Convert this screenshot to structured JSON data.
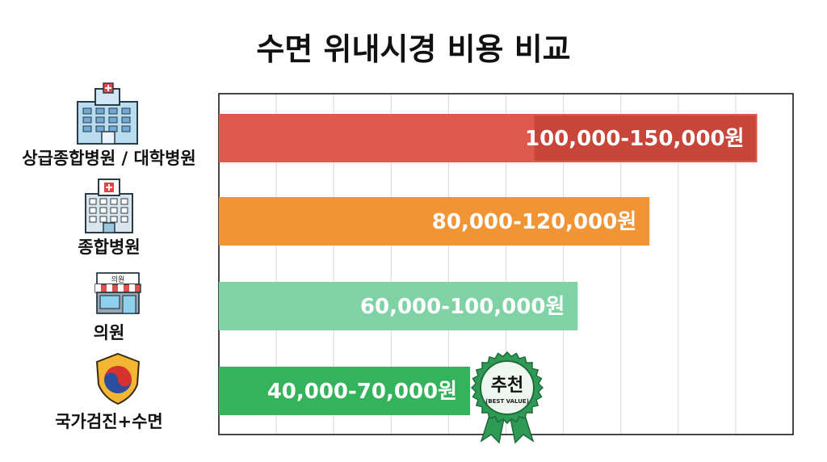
{
  "chart_data": {
    "type": "bar",
    "orientation": "horizontal",
    "title": "수면 위내시경 비용 비교",
    "categories": [
      "상급종합병원 / 대학병원",
      "종합병원",
      "의원",
      "국가검진+수면"
    ],
    "icons": [
      "hospital-building-icon",
      "hospital-icon",
      "clinic-storefront-icon",
      "national-shield-icon"
    ],
    "values": [
      [
        100000,
        150000
      ],
      [
        80000,
        120000
      ],
      [
        60000,
        100000
      ],
      [
        40000,
        70000
      ]
    ],
    "data_labels": [
      "100,000-150,000원",
      "80,000-120,000원",
      "60,000-100,000원",
      "40,000-70,000원"
    ],
    "colors": [
      "#de5a4c",
      "#f19435",
      "#7fd2a4",
      "#35b35c"
    ],
    "label_bg_color": "#c8453a",
    "xlim": [
      0,
      160000
    ],
    "grid": true,
    "badge": {
      "category_index": 3,
      "text": "추천",
      "subtext": "(BEST VALUE)",
      "color": "#2e9a55"
    }
  }
}
